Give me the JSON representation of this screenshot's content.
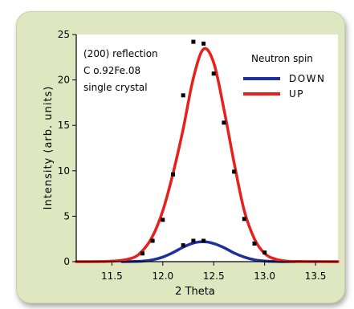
{
  "chart_data": {
    "type": "line",
    "xlabel": "2 Theta",
    "ylabel": "Intensity  (arb. units)",
    "xlim": [
      11.15,
      13.72
    ],
    "ylim": [
      0,
      25
    ],
    "x_ticks": [
      "11.5",
      "12.0",
      "12.5",
      "13.0",
      "13.5"
    ],
    "y_ticks": [
      "0",
      "5",
      "10",
      "15",
      "20",
      "25"
    ],
    "annotation_lines": [
      "(200) reflection",
      "C o.92Fe.08",
      "single crystal"
    ],
    "legend": {
      "title": "Neutron spin",
      "placement": "top-right",
      "entries": [
        "DOWN",
        "UP"
      ]
    },
    "series": [
      {
        "name": "DOWN",
        "color": "#1f2f9c",
        "x": [
          11.6,
          11.8,
          11.9,
          12.0,
          12.1,
          12.2,
          12.3,
          12.4,
          12.5,
          12.6,
          12.7,
          12.8,
          12.9,
          13.0,
          13.1,
          13.2,
          13.3
        ],
        "y": [
          0.0,
          0.05,
          0.2,
          0.5,
          1.0,
          1.6,
          2.05,
          2.2,
          2.0,
          1.55,
          0.95,
          0.5,
          0.2,
          0.07,
          0.02,
          0.0,
          0.0
        ]
      },
      {
        "name": "UP",
        "color": "#e8201c",
        "x": [
          11.15,
          11.5,
          11.7,
          11.8,
          11.9,
          12.0,
          12.1,
          12.2,
          12.3,
          12.4,
          12.5,
          12.6,
          12.7,
          12.8,
          12.9,
          13.0,
          13.1,
          13.2,
          13.3,
          13.72
        ],
        "y": [
          0.0,
          0.05,
          0.4,
          1.2,
          2.8,
          5.6,
          9.7,
          14.6,
          20.2,
          23.4,
          21.9,
          16.8,
          10.9,
          5.6,
          2.5,
          0.9,
          0.3,
          0.08,
          0.02,
          0.0
        ]
      }
    ],
    "data_points": [
      {
        "x": 11.8,
        "y": 0.9
      },
      {
        "x": 11.9,
        "y": 2.3
      },
      {
        "x": 12.0,
        "y": 4.6
      },
      {
        "x": 12.1,
        "y": 9.6
      },
      {
        "x": 12.2,
        "y": 18.3
      },
      {
        "x": 12.3,
        "y": 24.2
      },
      {
        "x": 12.4,
        "y": 24.0
      },
      {
        "x": 12.5,
        "y": 20.7
      },
      {
        "x": 12.6,
        "y": 15.3
      },
      {
        "x": 12.7,
        "y": 9.9
      },
      {
        "x": 12.8,
        "y": 4.7
      },
      {
        "x": 12.9,
        "y": 2.0
      },
      {
        "x": 13.0,
        "y": 1.0
      },
      {
        "x": 12.2,
        "y": 1.8
      },
      {
        "x": 12.3,
        "y": 2.3
      },
      {
        "x": 12.4,
        "y": 2.3
      }
    ]
  }
}
